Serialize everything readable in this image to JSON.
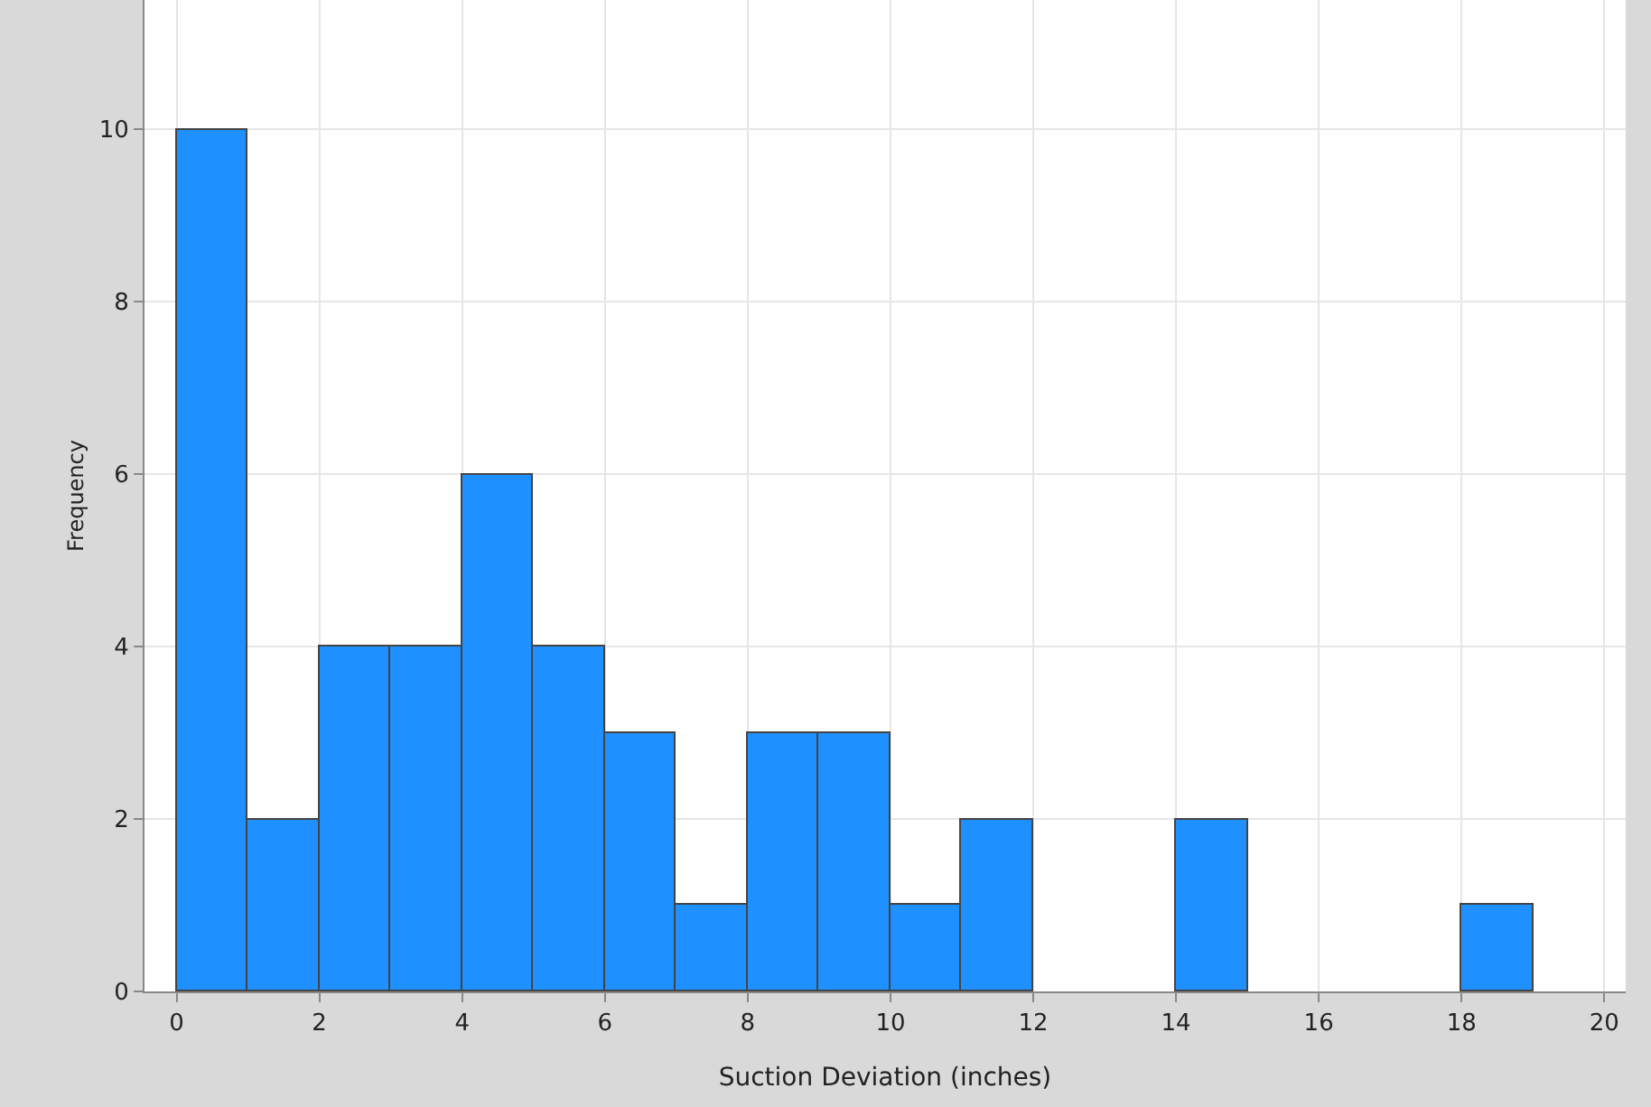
{
  "chart_data": {
    "type": "histogram",
    "xlabel": "Suction Deviation (inches)",
    "ylabel": "Frequency",
    "bins": [
      0,
      1,
      2,
      3,
      4,
      5,
      6,
      7,
      8,
      9,
      10,
      11,
      12,
      13,
      14,
      15,
      16,
      17,
      18,
      19
    ],
    "values": [
      10,
      2,
      4,
      4,
      6,
      4,
      3,
      1,
      3,
      3,
      1,
      2,
      0,
      0,
      2,
      0,
      0,
      0,
      1
    ],
    "color": "#1e90ff",
    "xlim": [
      -0.45,
      20.3
    ],
    "xticks": [
      0,
      2,
      4,
      6,
      8,
      10,
      12,
      14,
      16,
      18,
      20
    ],
    "ylim": [
      0,
      11.5
    ],
    "yticks": [
      0,
      2,
      4,
      6,
      8,
      10
    ],
    "grid": true
  }
}
